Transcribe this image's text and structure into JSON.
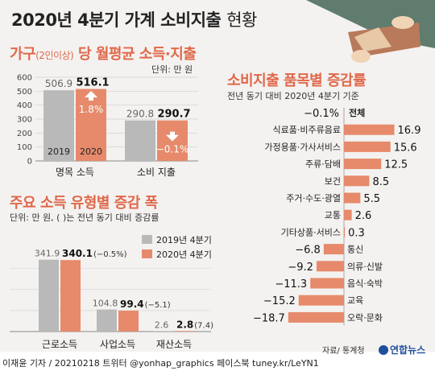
{
  "title": "2020년 4분기 가계 소비지출",
  "title_suffix": "현황",
  "section1": {
    "title_a": "가구",
    "title_small": "(2인이상)",
    "title_b": " 당 월평균 소득·지출",
    "unit": "단위: 만 원"
  },
  "section2": {
    "title": "주요 소득 유형별 증감 폭",
    "unit": "단위: 만 원, ( )는 전년 동기 대비 증감률",
    "legend_2019": "2019년 4분기",
    "legend_2020": "2020년 4분기"
  },
  "section3": {
    "title": "소비지출 품목별 증감률",
    "subtitle": "전년 동기 대비 2020년 4분기 기준",
    "source": "자료/ 통계청"
  },
  "logo_text": "연합뉴스",
  "footer": "이재윤 기자 / 20210218   트위터 @yonhap_graphics  페이스북 tuney.kr/LeYN1",
  "colors": {
    "accent": "#e0684a",
    "bar_2020": "#e68a6b",
    "bar_2019": "#b9b9b9",
    "panel": "#f4f2f0"
  },
  "chart_data": [
    {
      "type": "bar",
      "title": "가구(2인이상) 당 월평균 소득·지출",
      "unit": "단위: 만 원",
      "categories": [
        "명목 소득",
        "소비 지출"
      ],
      "series": [
        {
          "name": "2019",
          "values": [
            506.9,
            290.8
          ]
        },
        {
          "name": "2020",
          "values": [
            516.1,
            290.7
          ]
        }
      ],
      "changes": [
        "1.8%",
        "−0.1%"
      ],
      "yticks": [
        0,
        100,
        200,
        300,
        400,
        500,
        600
      ],
      "ylim": [
        0,
        600
      ],
      "grid": true
    },
    {
      "type": "bar",
      "title": "주요 소득 유형별 증감 폭",
      "unit": "단위: 만 원, ( )는 전년 동기 대비 증감률",
      "categories": [
        "근로소득",
        "사업소득",
        "재산소득"
      ],
      "series": [
        {
          "name": "2019년 4분기",
          "values": [
            341.9,
            104.8,
            2.6
          ]
        },
        {
          "name": "2020년 4분기",
          "values": [
            340.1,
            99.4,
            2.8
          ]
        }
      ],
      "changes": [
        "(−0.5%)",
        "(−5.1)",
        "(7.4)"
      ],
      "ylim": [
        0,
        360
      ],
      "grid": true
    },
    {
      "type": "bar",
      "orientation": "horizontal",
      "title": "소비지출 품목별 증감률",
      "subtitle": "전년 동기 대비 2020년 4분기 기준",
      "categories": [
        "전체",
        "식료품·비주류음료",
        "가정용품·가사서비스",
        "주류·담배",
        "보건",
        "주거·수도·광열",
        "교통",
        "기타상품·서비스",
        "통신",
        "의류·신발",
        "음식·숙박",
        "교육",
        "오락·문화"
      ],
      "values": [
        -0.1,
        16.9,
        15.6,
        12.5,
        8.5,
        5.5,
        2.6,
        0.3,
        -6.8,
        -9.2,
        -11.3,
        -15.2,
        -18.7
      ],
      "value_labels": [
        "−0.1%",
        "16.9",
        "15.6",
        "12.5",
        "8.5",
        "5.5",
        "2.6",
        "0.3",
        "−6.8",
        "−9.2",
        "−11.3",
        "−15.2",
        "−18.7"
      ],
      "source": "자료/ 통계청"
    }
  ]
}
